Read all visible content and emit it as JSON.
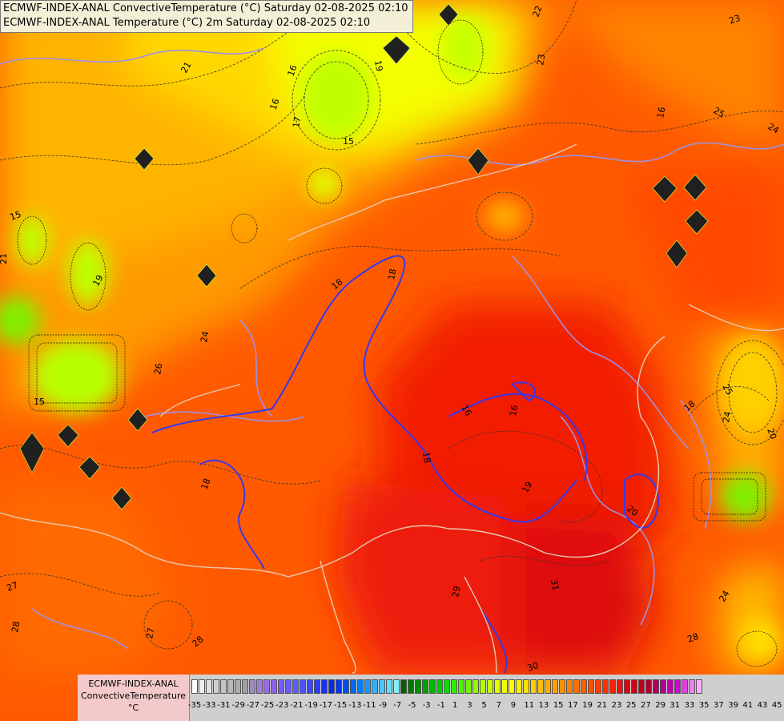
{
  "header": {
    "line1": "ECMWF-INDEX-ANAL ConvectiveTemperature (°C) Saturday 02-08-2025 02:10",
    "line2": "ECMWF-INDEX-ANAL Temperature (°C) 2m Saturday 02-08-2025 02:10"
  },
  "legend": {
    "model": "ECMWF-INDEX-ANAL",
    "parameter": "ConvectiveTemperature",
    "unit": "°C",
    "ticks": [
      "-35",
      "-33",
      "-31",
      "-29",
      "-27",
      "-25",
      "-23",
      "-21",
      "-19",
      "-17",
      "-15",
      "-13",
      "-11",
      "-9",
      "-7",
      "-5",
      "-3",
      "-1",
      "1",
      "3",
      "5",
      "7",
      "9",
      "11",
      "13",
      "15",
      "17",
      "19",
      "21",
      "23",
      "25",
      "27",
      "29",
      "31",
      "33",
      "35",
      "37",
      "39",
      "41",
      "43",
      "45"
    ],
    "colors": [
      "#ffffff",
      "#f0f0f0",
      "#e0e0e0",
      "#d0d0d0",
      "#c4c4c4",
      "#b8b8b8",
      "#acacac",
      "#a0a0a0",
      "#9c8cb8",
      "#a07cd8",
      "#9a6ae8",
      "#8c60f0",
      "#7a5cf4",
      "#6a5cf8",
      "#5a5cfc",
      "#4a54ff",
      "#3a48ff",
      "#2a3cff",
      "#1a32f0",
      "#0a2ae8",
      "#0038f0",
      "#0050f0",
      "#0068f4",
      "#0080f8",
      "#1898fc",
      "#30b0ff",
      "#48c8ff",
      "#60e0ff",
      "#80f0ff",
      "#006000",
      "#007800",
      "#008c00",
      "#00a000",
      "#00b400",
      "#00c800",
      "#10dc00",
      "#30ec00",
      "#50f400",
      "#70f800",
      "#90fc00",
      "#b0ff00",
      "#c8ff00",
      "#e0ff00",
      "#f4ff00",
      "#ffff00",
      "#fff000",
      "#ffe000",
      "#ffd000",
      "#ffc000",
      "#ffb000",
      "#ffa000",
      "#ff9000",
      "#ff8000",
      "#ff7000",
      "#ff6000",
      "#ff5000",
      "#ff4000",
      "#ff3000",
      "#ff2000",
      "#f01010",
      "#e00010",
      "#d00018",
      "#c00020",
      "#b00030",
      "#b00060",
      "#b00090",
      "#c000b0",
      "#d000d0",
      "#e040e0",
      "#f080f0",
      "#ffb0ff"
    ]
  },
  "map_labels": {
    "contours": [
      "21",
      "16",
      "16",
      "17",
      "15",
      "19",
      "23",
      "22",
      "23",
      "25",
      "24",
      "16",
      "18",
      "18",
      "15",
      "21",
      "19",
      "24",
      "26",
      "15",
      "18",
      "16",
      "16",
      "18",
      "19",
      "20",
      "20",
      "25",
      "24",
      "18",
      "27",
      "28",
      "27",
      "28",
      "29",
      "31",
      "28",
      "30",
      "24"
    ]
  }
}
